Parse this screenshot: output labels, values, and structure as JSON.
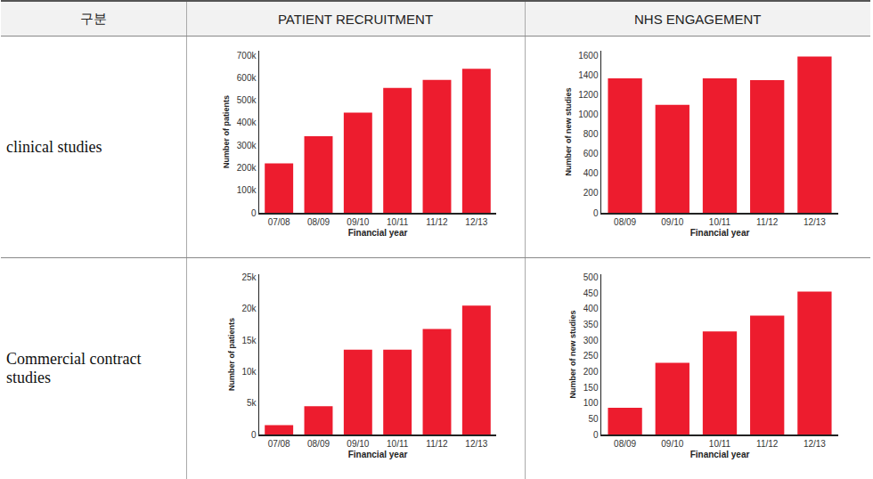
{
  "table": {
    "header": [
      "구분",
      "PATIENT RECRUITMENT",
      "NHS ENGAGEMENT"
    ],
    "rows": [
      "clinical studies",
      "Commercial contract studies"
    ]
  },
  "chart_data": [
    {
      "type": "bar",
      "x_label": "Financial year",
      "y_label": "Number of patients",
      "categories": [
        "07/08",
        "08/09",
        "09/10",
        "10/11",
        "11/12",
        "12/13"
      ],
      "values": [
        220000,
        340000,
        445000,
        555000,
        590000,
        640000
      ],
      "color": "#ed1c2e",
      "ylim": [
        0,
        720000
      ],
      "yticks": [
        0,
        {
          "value": 100000,
          "label": "100k"
        },
        {
          "value": 200000,
          "label": "200k"
        },
        {
          "value": 300000,
          "label": "300k"
        },
        {
          "value": 400000,
          "label": "400k"
        },
        {
          "value": 500000,
          "label": "500k"
        },
        {
          "value": 600000,
          "label": "600k"
        },
        {
          "value": 700000,
          "label": "700k"
        }
      ],
      "grid": false
    },
    {
      "type": "bar",
      "x_label": "Financial year",
      "y_label": "Number of new studies",
      "categories": [
        "08/09",
        "09/10",
        "10/11",
        "11/12",
        "12/13"
      ],
      "values": [
        1370,
        1100,
        1370,
        1350,
        1590
      ],
      "color": "#ed1c2e",
      "ylim": [
        0,
        1650
      ],
      "yticks": [
        0,
        200,
        400,
        600,
        800,
        1000,
        1200,
        1400,
        1600
      ],
      "grid": false
    },
    {
      "type": "bar",
      "x_label": "Financial year",
      "y_label": "Number of patients",
      "categories": [
        "07/08",
        "08/09",
        "09/10",
        "10/11",
        "11/12",
        "12/13"
      ],
      "values": [
        1500,
        4500,
        13500,
        13500,
        16800,
        20500
      ],
      "color": "#ed1c2e",
      "ylim": [
        0,
        25500
      ],
      "yticks": [
        0,
        {
          "value": 5000,
          "label": "5k"
        },
        {
          "value": 10000,
          "label": "10k"
        },
        {
          "value": 15000,
          "label": "15k"
        },
        {
          "value": 20000,
          "label": "20k"
        },
        {
          "value": 25000,
          "label": "25k"
        }
      ],
      "grid": false
    },
    {
      "type": "bar",
      "x_label": "Financial year",
      "y_label": "Number of new studies",
      "categories": [
        "08/09",
        "09/10",
        "10/11",
        "11/12",
        "12/13"
      ],
      "values": [
        85,
        228,
        328,
        378,
        455
      ],
      "color": "#ed1c2e",
      "ylim": [
        0,
        510
      ],
      "yticks": [
        0,
        50,
        100,
        150,
        200,
        250,
        300,
        350,
        400,
        450,
        500
      ],
      "grid": false
    }
  ]
}
